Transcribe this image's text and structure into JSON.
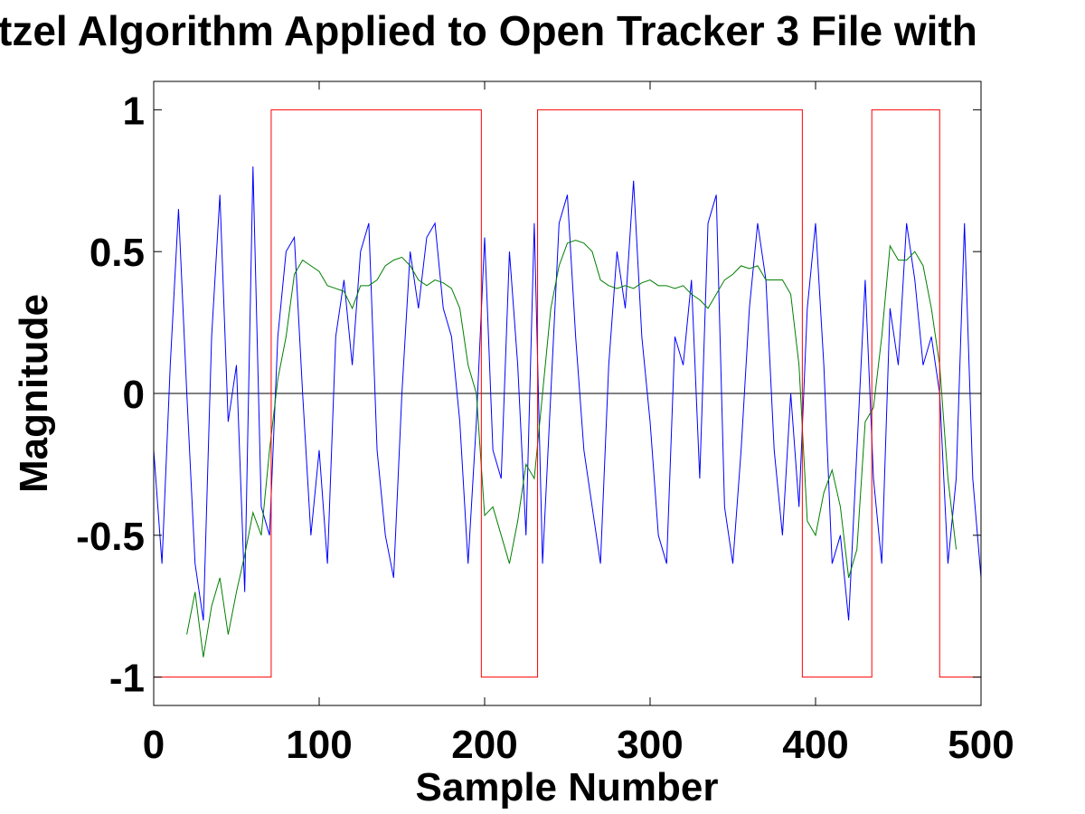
{
  "chart_data": {
    "type": "line",
    "title": "tzel Algorithm Applied to Open Tracker 3 File with",
    "x_label": "Sample Number",
    "y_label": "Magnitude",
    "xlim": [
      0,
      500
    ],
    "ylim": [
      -1.1,
      1.1
    ],
    "xticks": [
      0,
      100,
      200,
      300,
      400,
      500
    ],
    "yticks": [
      -1,
      -0.5,
      0,
      0.5,
      1
    ],
    "reference_line": 0,
    "series": [
      {
        "color": "#0000ff",
        "x": [
          0,
          5,
          10,
          15,
          20,
          25,
          30,
          35,
          40,
          45,
          50,
          55,
          60,
          65,
          70,
          75,
          80,
          85,
          90,
          95,
          100,
          105,
          110,
          115,
          120,
          125,
          130,
          135,
          140,
          145,
          150,
          155,
          160,
          165,
          170,
          175,
          180,
          185,
          190,
          195,
          200,
          205,
          210,
          215,
          220,
          225,
          230,
          235,
          240,
          245,
          250,
          255,
          260,
          265,
          270,
          275,
          280,
          285,
          290,
          295,
          300,
          305,
          310,
          315,
          320,
          325,
          330,
          335,
          340,
          345,
          350,
          355,
          360,
          365,
          370,
          375,
          380,
          385,
          390,
          395,
          400,
          405,
          410,
          415,
          420,
          425,
          430,
          435,
          440,
          445,
          450,
          455,
          460,
          465,
          470,
          475,
          480,
          485,
          490,
          495,
          500
        ],
        "values": [
          -0.2,
          -0.6,
          0.1,
          0.65,
          0.0,
          -0.6,
          -0.8,
          0.2,
          0.7,
          -0.1,
          0.1,
          -0.7,
          0.8,
          -0.4,
          -0.5,
          0.2,
          0.5,
          0.55,
          0.0,
          -0.5,
          -0.2,
          -0.6,
          0.2,
          0.4,
          0.1,
          0.5,
          0.6,
          -0.2,
          -0.5,
          -0.65,
          0.0,
          0.5,
          0.3,
          0.55,
          0.6,
          0.3,
          0.2,
          -0.1,
          -0.6,
          -0.1,
          0.55,
          -0.2,
          -0.3,
          0.5,
          0.1,
          -0.5,
          0.6,
          -0.6,
          0.0,
          0.6,
          0.7,
          0.2,
          -0.2,
          -0.4,
          -0.6,
          0.1,
          0.5,
          0.3,
          0.75,
          0.2,
          -0.1,
          -0.5,
          -0.6,
          0.2,
          0.1,
          0.4,
          -0.3,
          0.6,
          0.7,
          -0.4,
          -0.6,
          -0.2,
          0.3,
          0.6,
          0.4,
          -0.2,
          -0.5,
          0.0,
          -0.4,
          0.3,
          0.6,
          0.1,
          -0.6,
          -0.5,
          -0.8,
          -0.2,
          0.4,
          -0.3,
          -0.6,
          0.3,
          0.1,
          0.6,
          0.4,
          0.1,
          0.2,
          0.0,
          -0.6,
          -0.3,
          0.6,
          -0.3,
          -0.65
        ]
      },
      {
        "color": "#007f00",
        "x": [
          20,
          25,
          30,
          35,
          40,
          45,
          50,
          55,
          60,
          65,
          70,
          75,
          80,
          85,
          90,
          95,
          100,
          105,
          110,
          115,
          120,
          125,
          130,
          135,
          140,
          145,
          150,
          155,
          160,
          165,
          170,
          175,
          180,
          185,
          190,
          195,
          200,
          205,
          210,
          215,
          220,
          225,
          230,
          235,
          240,
          245,
          250,
          255,
          260,
          265,
          270,
          275,
          280,
          285,
          290,
          295,
          300,
          305,
          310,
          315,
          320,
          325,
          330,
          335,
          340,
          345,
          350,
          355,
          360,
          365,
          370,
          375,
          380,
          385,
          390,
          395,
          400,
          405,
          410,
          415,
          420,
          425,
          430,
          435,
          440,
          445,
          450,
          455,
          460,
          465,
          470,
          475,
          480,
          485
        ],
        "values": [
          -0.85,
          -0.7,
          -0.93,
          -0.75,
          -0.65,
          -0.85,
          -0.7,
          -0.57,
          -0.42,
          -0.5,
          -0.2,
          0.05,
          0.2,
          0.42,
          0.47,
          0.45,
          0.43,
          0.38,
          0.37,
          0.36,
          0.3,
          0.38,
          0.38,
          0.4,
          0.45,
          0.47,
          0.48,
          0.45,
          0.4,
          0.38,
          0.4,
          0.39,
          0.37,
          0.3,
          0.1,
          0.0,
          -0.43,
          -0.4,
          -0.5,
          -0.6,
          -0.45,
          -0.25,
          -0.3,
          0.0,
          0.3,
          0.45,
          0.53,
          0.54,
          0.53,
          0.5,
          0.4,
          0.38,
          0.37,
          0.38,
          0.37,
          0.39,
          0.4,
          0.38,
          0.38,
          0.37,
          0.38,
          0.35,
          0.33,
          0.3,
          0.35,
          0.4,
          0.42,
          0.45,
          0.44,
          0.45,
          0.4,
          0.4,
          0.4,
          0.35,
          0.1,
          -0.45,
          -0.5,
          -0.35,
          -0.27,
          -0.4,
          -0.65,
          -0.55,
          -0.1,
          -0.05,
          0.2,
          0.52,
          0.47,
          0.47,
          0.5,
          0.45,
          0.3,
          0.1,
          -0.3,
          -0.55
        ]
      },
      {
        "color": "#ff0000",
        "x": [
          0,
          71,
          71,
          198,
          198,
          232,
          232,
          392,
          392,
          434,
          434,
          475,
          475,
          500
        ],
        "values": [
          -1,
          -1,
          1,
          1,
          -1,
          -1,
          1,
          1,
          -1,
          -1,
          1,
          1,
          -1,
          -1
        ]
      }
    ]
  }
}
